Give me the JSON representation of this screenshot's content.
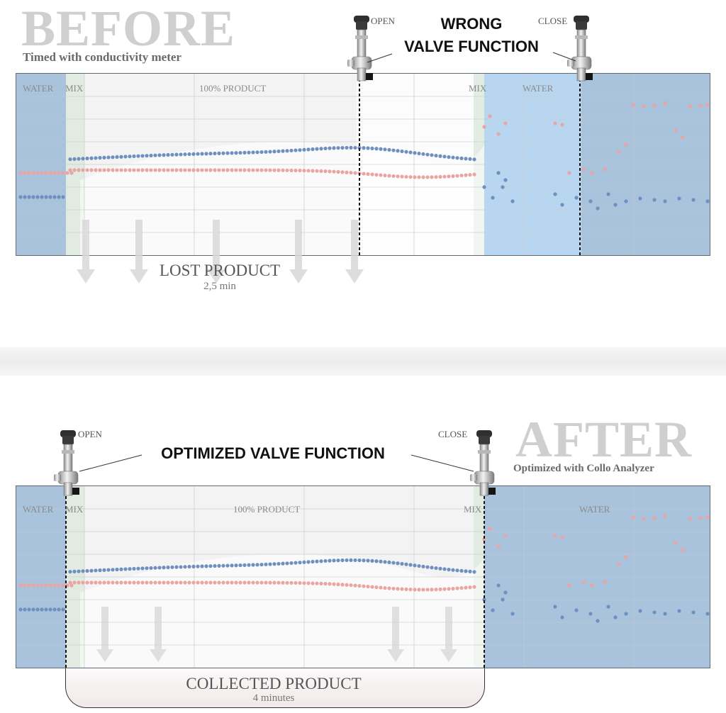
{
  "before": {
    "title": "BEFORE",
    "subtitle": "Timed with conductivity meter",
    "callout_line1": "WRONG",
    "callout_line2": "VALVE FUNCTION",
    "open_label": "OPEN",
    "close_label": "CLOSE",
    "zones": {
      "water_left": "WATER",
      "mix_left": "MIX",
      "product": "100% PRODUCT",
      "mix_right": "MIX",
      "water_right": "WATER"
    },
    "result_label": "LOST PRODUCT",
    "result_time": "2,5 min"
  },
  "after": {
    "title": "AFTER",
    "subtitle": "Optimized with Collo Analyzer",
    "callout": "OPTIMIZED VALVE FUNCTION",
    "open_label": "OPEN",
    "close_label": "CLOSE",
    "zones": {
      "water_left": "WATER",
      "mix_left": "MIX",
      "product": "100% PRODUCT",
      "mix_right": "MIX",
      "water_right": "WATER"
    },
    "result_label": "COLLECTED PRODUCT",
    "result_time": "4 minutes"
  },
  "colors": {
    "water": "#a9c3dd",
    "water_light": "#b9d6f0",
    "mix": "#dfeadf",
    "product": "#f3f3f3",
    "blue_dots": "#6f8fbf",
    "pink_dots": "#e9a5a2",
    "valve_line": "#111111"
  }
}
